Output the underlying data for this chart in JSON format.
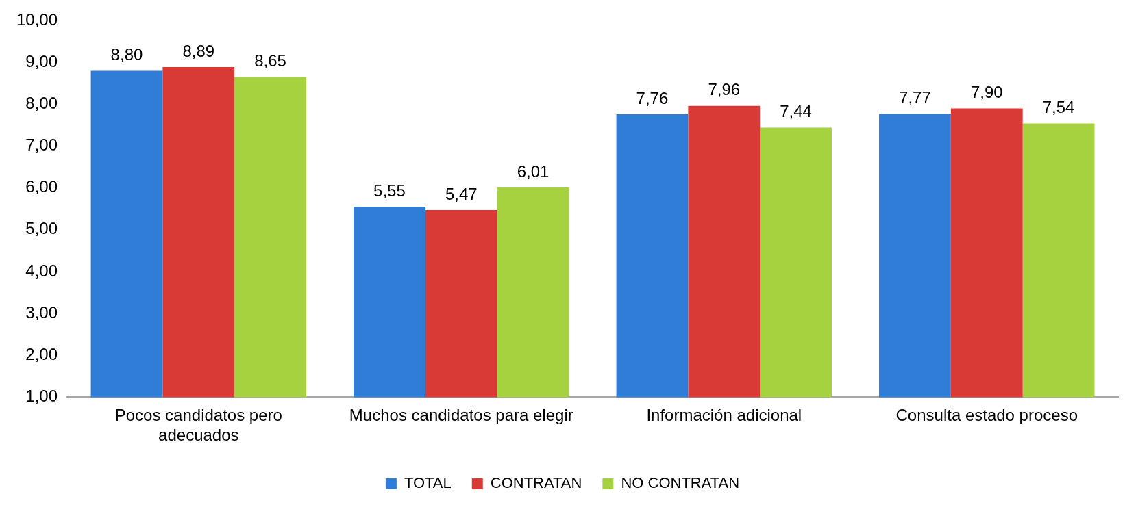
{
  "chart_data": {
    "type": "bar",
    "categories": [
      "Pocos candidatos pero adecuados",
      "Muchos candidatos para elegir",
      "Información adicional",
      "Consulta estado proceso"
    ],
    "series": [
      {
        "name": "TOTAL",
        "color": "#2f7dd6",
        "values": [
          8.8,
          5.55,
          7.76,
          7.77
        ],
        "value_labels": [
          "8,80",
          "5,55",
          "7,76",
          "7,77"
        ]
      },
      {
        "name": "CONTRATAN",
        "color": "#d93a36",
        "values": [
          8.89,
          5.47,
          7.96,
          7.9
        ],
        "value_labels": [
          "8,89",
          "5,47",
          "7,96",
          "7,90"
        ]
      },
      {
        "name": "NO CONTRATAN",
        "color": "#a5d23e",
        "values": [
          8.65,
          6.01,
          7.44,
          7.54
        ],
        "value_labels": [
          "8,65",
          "6,01",
          "7,44",
          "7,54"
        ]
      }
    ],
    "ylim": [
      1,
      10
    ],
    "yticks": [
      {
        "value": 1,
        "label": "1,00"
      },
      {
        "value": 2,
        "label": "2,00"
      },
      {
        "value": 3,
        "label": "3,00"
      },
      {
        "value": 4,
        "label": "4,00"
      },
      {
        "value": 5,
        "label": "5,00"
      },
      {
        "value": 6,
        "label": "6,00"
      },
      {
        "value": 7,
        "label": "7,00"
      },
      {
        "value": 8,
        "label": "8,00"
      },
      {
        "value": 9,
        "label": "9,00"
      },
      {
        "value": 10,
        "label": "10,00"
      }
    ],
    "grid": false,
    "legend": "bottom"
  }
}
